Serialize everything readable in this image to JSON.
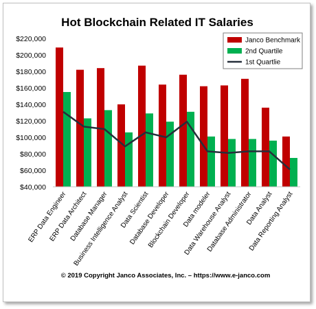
{
  "chart_data": {
    "type": "bar",
    "title": "Hot Blockchain Related IT Salaries",
    "footer": "© 2019 Copyright Janco Associates, Inc. – https://www.e-janco.com",
    "categories": [
      "ERP Data Engineer",
      "ERP  Data Architect",
      "Database Manager",
      "Business Intelligence Analyst",
      "Data Scientist",
      "Database Developer",
      "Blockchain Developer",
      "Data modeler",
      "Data Warehouse Analyst",
      "Database Administrator",
      "Data Analyst",
      "Data Reporting Analyst"
    ],
    "series": [
      {
        "name": "Janco Benchmark",
        "type": "bar",
        "color": "#c00000",
        "values": [
          209000,
          182000,
          184000,
          140000,
          187000,
          164000,
          176000,
          162000,
          163000,
          171000,
          136000,
          101000
        ]
      },
      {
        "name": "2nd Quartile",
        "type": "bar",
        "color": "#00b050",
        "values": [
          155000,
          123000,
          133000,
          106000,
          129000,
          119000,
          131000,
          101000,
          98000,
          98000,
          96000,
          75000
        ]
      },
      {
        "name": "1st Quartlie",
        "type": "line",
        "color": "#262f3b",
        "values": [
          131000,
          113000,
          110000,
          89000,
          106000,
          100000,
          119000,
          83000,
          81000,
          83000,
          83000,
          61000
        ]
      }
    ],
    "ylim": [
      40000,
      220000
    ],
    "yticks": [
      "$40,000",
      "$60,000",
      "$80,000",
      "$100,000",
      "$120,000",
      "$140,000",
      "$160,000",
      "$180,000",
      "$200,000",
      "$220,000"
    ],
    "grid": false,
    "legend_position": "top-right"
  }
}
